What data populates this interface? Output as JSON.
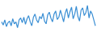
{
  "chart_data": {
    "type": "line",
    "categories": [
      null,
      null,
      null,
      null,
      null,
      null,
      null,
      null,
      null,
      null,
      null,
      null,
      null,
      null,
      null,
      null,
      null,
      null,
      null,
      null,
      null,
      null,
      null,
      null,
      null,
      null,
      null,
      null,
      null,
      null,
      null,
      null,
      null,
      null,
      null,
      null,
      null,
      null,
      null,
      null,
      null,
      null,
      null,
      null,
      null,
      null,
      null,
      null,
      null,
      null,
      null,
      null,
      null,
      null,
      null,
      null,
      null,
      null,
      null,
      null
    ],
    "values": [
      50,
      42,
      55,
      38,
      48,
      52,
      40,
      58,
      45,
      50,
      35,
      55,
      60,
      48,
      62,
      44,
      58,
      66,
      50,
      40,
      62,
      70,
      55,
      48,
      64,
      58,
      72,
      52,
      45,
      68,
      75,
      60,
      50,
      70,
      78,
      56,
      62,
      80,
      66,
      50,
      72,
      84,
      60,
      76,
      88,
      58,
      70,
      90,
      64,
      52,
      80,
      86,
      66,
      74,
      92,
      60,
      78,
      70,
      55,
      40
    ],
    "color": "#3b8fd4",
    "ylim": [
      20,
      100
    ],
    "grid": false,
    "tick_labels": false
  }
}
